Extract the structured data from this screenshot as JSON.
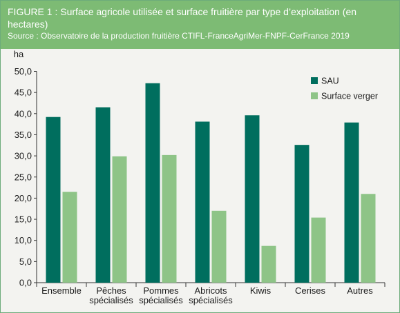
{
  "header": {
    "title": "FIGURE 1 : Surface agricole utilisée et surface fruitière par type d’exploitation (en hectares)",
    "source": "Source : Observatoire de la production fruitière CTIFL-FranceAgriMer-FNPF-CerFrance 2019"
  },
  "colors": {
    "header_bg": "#7dbb74",
    "sau": "#006e5e",
    "verger": "#8ec487"
  },
  "chart_data": {
    "type": "bar",
    "ylabel": "ha",
    "ylim": [
      0,
      50
    ],
    "yticks": [
      "0,0",
      "5,0",
      "10,0",
      "15,0",
      "20,0",
      "25,0",
      "30,0",
      "35,0",
      "40,0",
      "45,0",
      "50,0"
    ],
    "categories": [
      [
        "Ensemble"
      ],
      [
        "Pêches",
        "spécialisés"
      ],
      [
        "Pommes",
        "spécialisés"
      ],
      [
        "Abricots",
        "spécialisés"
      ],
      [
        "Kiwis"
      ],
      [
        "Cerises"
      ],
      [
        "Autres"
      ]
    ],
    "series": [
      {
        "name": "SAU",
        "color": "#006e5e",
        "values": [
          39.2,
          41.5,
          47.2,
          38.1,
          39.6,
          32.6,
          37.9
        ]
      },
      {
        "name": "Surface verger",
        "color": "#8ec487",
        "values": [
          21.5,
          29.9,
          30.2,
          17.0,
          8.7,
          15.4,
          21.0
        ]
      }
    ],
    "grid": false,
    "legend": "top-right"
  }
}
